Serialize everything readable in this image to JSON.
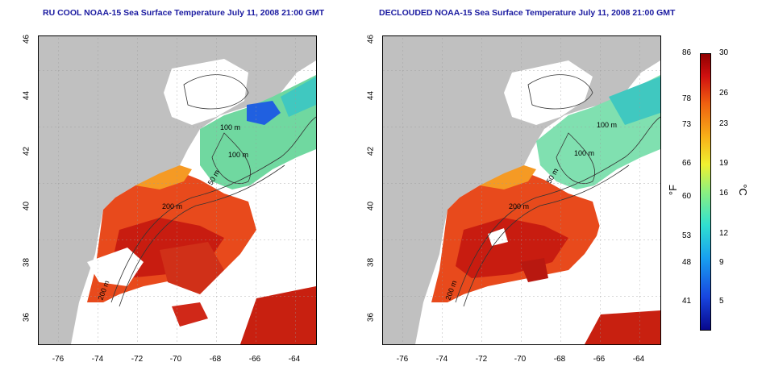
{
  "titles": {
    "left": "RU COOL NOAA-15 Sea Surface Temperature July 11, 2008 21:00 GMT",
    "right": "DECLOUDED NOAA-15 Sea Surface Temperature July 11, 2008 21:00 GMT"
  },
  "axes": {
    "lon_ticks": [
      "-76",
      "-74",
      "-72",
      "-70",
      "-68",
      "-66",
      "-64"
    ],
    "lat_ticks": [
      "46",
      "44",
      "42",
      "40",
      "38",
      "36"
    ]
  },
  "contour_labels": [
    "100 m",
    "100 m",
    "50 m",
    "200 m",
    "200 m"
  ],
  "colorbar": {
    "fahrenheit_ticks": [
      "86",
      "78",
      "73",
      "66",
      "60",
      "53",
      "48",
      "41"
    ],
    "celsius_ticks": [
      "30",
      "26",
      "23",
      "19",
      "16",
      "12",
      "9",
      "5"
    ],
    "unit_f": "°F",
    "unit_c": "°C"
  },
  "colors": {
    "land": "#c0c0c0",
    "warm": "#e03a18",
    "hot": "#b81010",
    "mid": "#f0a020",
    "cool": "#60d0c8",
    "cold": "#1860e0",
    "title": "#1a1aa0"
  }
}
